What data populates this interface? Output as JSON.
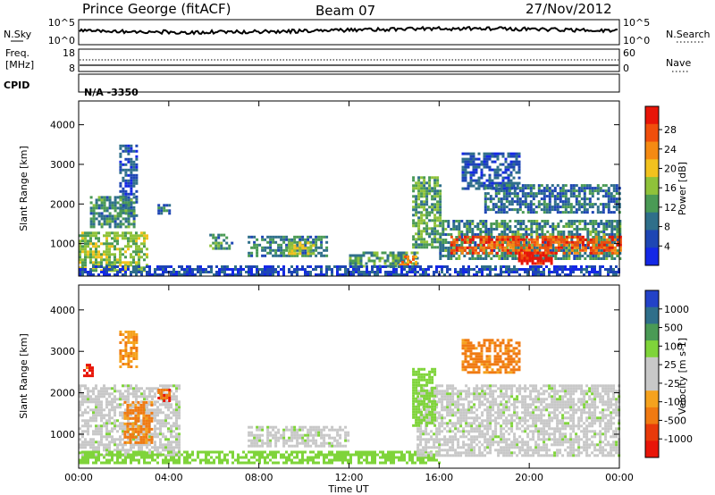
{
  "header": {
    "station": "Prince George (fitACF)",
    "beam": "Beam 07",
    "date": "27/Nov/2012"
  },
  "aux_labels": {
    "nsky": "N.Sky",
    "freq_line1": "Freq.",
    "freq_line2": "[MHz]",
    "cpid": "CPID",
    "cpid_value": "N/A  -3350",
    "nsearch": "N.Search",
    "nave": "Nave",
    "nsky_ticks": [
      "10^5",
      "10^0"
    ],
    "nsearch_ticks": [
      "10^5",
      "10^0"
    ],
    "freq_ticks": [
      "18",
      "8"
    ],
    "nave_ticks": [
      "60",
      "0"
    ]
  },
  "chart_data": [
    {
      "type": "heatmap",
      "panel": "power",
      "ylabel": "Slant Range [km]",
      "ylim": [
        180,
        4600
      ],
      "xlim_hours": [
        0,
        24
      ],
      "y_ticks": [
        1000,
        2000,
        3000,
        4000
      ],
      "colorbar": {
        "label": "Power [dB]",
        "ticks": [
          "4",
          "8",
          "12",
          "16",
          "20",
          "24",
          "28"
        ],
        "colors": [
          "#1428e6",
          "#1e46b4",
          "#2f6f8a",
          "#4a9a55",
          "#8fc23a",
          "#f2c21e",
          "#f58a12",
          "#f04e0c",
          "#e81508"
        ]
      },
      "regions": [
        {
          "t0": 0.0,
          "t1": 3.0,
          "r0": 350,
          "r1": 1300,
          "level": 14
        },
        {
          "t0": 1.8,
          "t1": 2.6,
          "r0": 1700,
          "r1": 3500,
          "level": 6
        },
        {
          "t0": 0.5,
          "t1": 2.5,
          "r0": 1400,
          "r1": 2200,
          "level": 10
        },
        {
          "t0": 3.5,
          "t1": 4.0,
          "r0": 1750,
          "r1": 2000,
          "level": 8
        },
        {
          "t0": 5.8,
          "t1": 6.8,
          "r0": 850,
          "r1": 1250,
          "level": 10
        },
        {
          "t0": 7.5,
          "t1": 11.0,
          "r0": 700,
          "r1": 1200,
          "level": 9
        },
        {
          "t0": 9.3,
          "t1": 10.4,
          "r0": 750,
          "r1": 1050,
          "level": 16
        },
        {
          "t0": 12.0,
          "t1": 15.0,
          "r0": 400,
          "r1": 800,
          "level": 11
        },
        {
          "t0": 14.2,
          "t1": 15.0,
          "r0": 450,
          "r1": 700,
          "level": 22
        },
        {
          "t0": 14.8,
          "t1": 16.0,
          "r0": 900,
          "r1": 2700,
          "level": 12
        },
        {
          "t0": 16.0,
          "t1": 24.0,
          "r0": 650,
          "r1": 1600,
          "level": 10
        },
        {
          "t0": 16.5,
          "t1": 24.0,
          "r0": 750,
          "r1": 1200,
          "level": 24
        },
        {
          "t0": 19.5,
          "t1": 21.0,
          "r0": 500,
          "r1": 800,
          "level": 28
        },
        {
          "t0": 17.0,
          "t1": 19.5,
          "r0": 2400,
          "r1": 3300,
          "level": 6
        },
        {
          "t0": 18.0,
          "t1": 24.0,
          "r0": 1800,
          "r1": 2500,
          "level": 8
        },
        {
          "t0": 0.0,
          "t1": 24.0,
          "r0": 200,
          "r1": 450,
          "level": 5
        }
      ]
    },
    {
      "type": "heatmap",
      "panel": "velocity",
      "ylabel": "Slant Range [km]",
      "xlabel": "Time UT",
      "ylim": [
        180,
        4600
      ],
      "xlim_hours": [
        0,
        24
      ],
      "y_ticks": [
        1000,
        2000,
        3000,
        4000
      ],
      "x_ticks": [
        "00:00",
        "04:00",
        "08:00",
        "12:00",
        "16:00",
        "20:00",
        "00:00"
      ],
      "colorbar": {
        "label": "Velocity [m s-1]",
        "ticks": [
          "1000",
          "500",
          "100",
          "25",
          "-25",
          "-100",
          "-500",
          "-1000"
        ],
        "colors": [
          "#2342c8",
          "#2f6f8a",
          "#4a9a55",
          "#7fd43a",
          "#c8c8c8",
          "#c8c8c8",
          "#f5a21e",
          "#f07a12",
          "#e83a0a",
          "#e81508"
        ]
      },
      "regions": [
        {
          "t0": 0.0,
          "t1": 4.5,
          "r0": 500,
          "r1": 2200,
          "level": 0
        },
        {
          "t0": 2.0,
          "t1": 3.2,
          "r0": 800,
          "r1": 1800,
          "level": -400
        },
        {
          "t0": 1.8,
          "t1": 2.6,
          "r0": 2600,
          "r1": 3500,
          "level": -300
        },
        {
          "t0": 3.5,
          "t1": 4.0,
          "r0": 1800,
          "r1": 2100,
          "level": -500
        },
        {
          "t0": 0.2,
          "t1": 0.6,
          "r0": 2400,
          "r1": 2700,
          "level": -700
        },
        {
          "t0": 7.5,
          "t1": 12.0,
          "r0": 700,
          "r1": 1200,
          "level": 0
        },
        {
          "t0": 0.0,
          "t1": 16.0,
          "r0": 300,
          "r1": 600,
          "level": 60
        },
        {
          "t0": 15.0,
          "t1": 24.0,
          "r0": 500,
          "r1": 2200,
          "level": 0
        },
        {
          "t0": 14.8,
          "t1": 15.8,
          "r0": 1200,
          "r1": 2600,
          "level": 70
        },
        {
          "t0": 17.0,
          "t1": 19.5,
          "r0": 2500,
          "r1": 3300,
          "level": -400
        }
      ]
    }
  ],
  "colors": {
    "axis": "#000000",
    "background": "#ffffff"
  }
}
